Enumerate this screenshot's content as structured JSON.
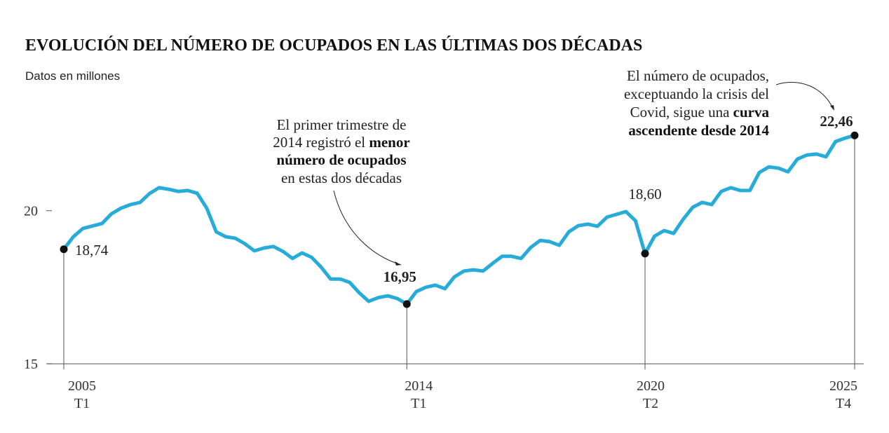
{
  "chart_data": {
    "type": "line",
    "title": "EVOLUCIÓN DEL NÚMERO DE OCUPADOS EN LAS ÚLTIMAS DOS DÉCADAS",
    "subtitle": "Datos en millones",
    "xlabel": "",
    "ylabel": "",
    "ylim": [
      15,
      23
    ],
    "yticks": [
      "20",
      "15"
    ],
    "ytick_values": [
      20,
      15
    ],
    "x_start": "2005 T1",
    "x_end": "2025 T4",
    "xticks": [
      {
        "index": 0,
        "year": "2005",
        "quarter": "T1"
      },
      {
        "index": 36,
        "year": "2014",
        "quarter": "T1"
      },
      {
        "index": 61,
        "year": "2020",
        "quarter": "T2"
      },
      {
        "index": 83,
        "year": "2025",
        "quarter": "T4"
      }
    ],
    "line_color": "#27acd9",
    "series": [
      {
        "name": "Ocupados (millones)",
        "values": [
          18.74,
          19.15,
          19.42,
          19.5,
          19.58,
          19.9,
          20.08,
          20.2,
          20.27,
          20.56,
          20.75,
          20.7,
          20.63,
          20.66,
          20.57,
          20.08,
          19.31,
          19.15,
          19.1,
          18.92,
          18.69,
          18.78,
          18.83,
          18.67,
          18.44,
          18.62,
          18.48,
          18.16,
          17.77,
          17.77,
          17.66,
          17.32,
          17.04,
          17.16,
          17.22,
          17.13,
          16.95,
          17.36,
          17.5,
          17.57,
          17.45,
          17.84,
          18.03,
          18.07,
          18.03,
          18.28,
          18.51,
          18.51,
          18.44,
          18.8,
          19.03,
          18.99,
          18.87,
          19.31,
          19.51,
          19.56,
          19.49,
          19.79,
          19.88,
          19.97,
          19.67,
          18.6,
          19.17,
          19.35,
          19.26,
          19.72,
          20.11,
          20.27,
          20.2,
          20.63,
          20.75,
          20.66,
          20.66,
          21.25,
          21.43,
          21.39,
          21.27,
          21.69,
          21.82,
          21.85,
          21.76,
          22.26,
          22.37,
          22.46
        ]
      }
    ],
    "data_labels": [
      {
        "index": 0,
        "text": "18,74",
        "bold": false
      },
      {
        "index": 36,
        "text": "16,95",
        "bold": true
      },
      {
        "index": 61,
        "text": "18,60",
        "bold": false
      },
      {
        "index": 83,
        "text": "22,46",
        "bold": true
      }
    ],
    "annotations": {
      "left": {
        "l1": "El primer trimestre de",
        "l2a": "2014 registró el ",
        "l2b": "menor",
        "l3": "número de ocupados",
        "l4": "en estas dos décadas"
      },
      "right": {
        "l1": "El número de ocupados,",
        "l2": "exceptuando la crisis del",
        "l3a": "Covid, sigue una ",
        "l3b": "curva",
        "l4": "ascendente desde 2014"
      }
    }
  }
}
